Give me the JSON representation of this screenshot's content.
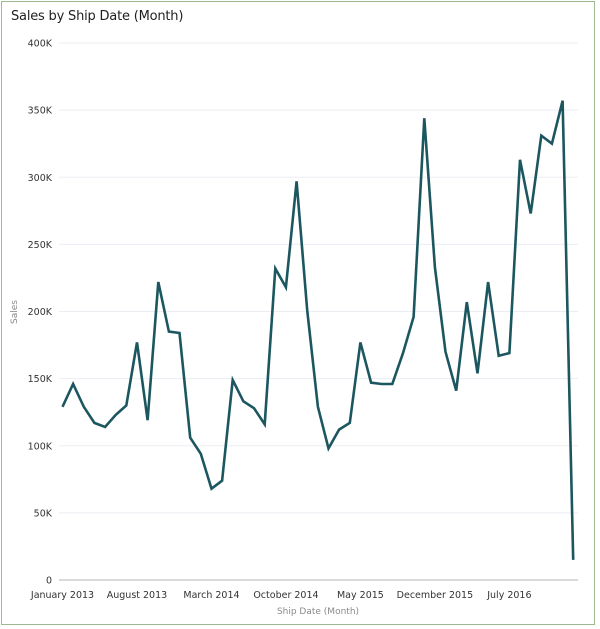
{
  "chart_data": {
    "type": "line",
    "title": "Sales by Ship Date (Month)",
    "xlabel": "Ship Date (Month)",
    "ylabel": "Sales",
    "ylim": [
      0,
      400000
    ],
    "grid": true,
    "line_color": "#1c5760",
    "yticks": [
      {
        "value": 0,
        "label": "0"
      },
      {
        "value": 50000,
        "label": "50K"
      },
      {
        "value": 100000,
        "label": "100K"
      },
      {
        "value": 150000,
        "label": "150K"
      },
      {
        "value": 200000,
        "label": "200K"
      },
      {
        "value": 250000,
        "label": "250K"
      },
      {
        "value": 300000,
        "label": "300K"
      },
      {
        "value": 350000,
        "label": "350K"
      },
      {
        "value": 400000,
        "label": "400K"
      }
    ],
    "xticks": [
      {
        "index": 0,
        "label": "January 2013"
      },
      {
        "index": 7,
        "label": "August 2013"
      },
      {
        "index": 14,
        "label": "March 2014"
      },
      {
        "index": 21,
        "label": "October 2014"
      },
      {
        "index": 28,
        "label": "May 2015"
      },
      {
        "index": 35,
        "label": "December 2015"
      },
      {
        "index": 42,
        "label": "July 2016"
      }
    ],
    "x": [
      "2013-01",
      "2013-02",
      "2013-03",
      "2013-04",
      "2013-05",
      "2013-06",
      "2013-07",
      "2013-08",
      "2013-09",
      "2013-10",
      "2013-11",
      "2013-12",
      "2014-01",
      "2014-02",
      "2014-03",
      "2014-04",
      "2014-05",
      "2014-06",
      "2014-07",
      "2014-08",
      "2014-09",
      "2014-10",
      "2014-11",
      "2014-12",
      "2015-01",
      "2015-02",
      "2015-03",
      "2015-04",
      "2015-05",
      "2015-06",
      "2015-07",
      "2015-08",
      "2015-09",
      "2015-10",
      "2015-11",
      "2015-12",
      "2016-01",
      "2016-02",
      "2016-03",
      "2016-04",
      "2016-05",
      "2016-06",
      "2016-07",
      "2016-08",
      "2016-09",
      "2016-10",
      "2016-11",
      "2016-12",
      "2017-01"
    ],
    "series": [
      {
        "name": "Sales",
        "values": [
          129000,
          146000,
          129000,
          117000,
          114000,
          123000,
          130000,
          177000,
          119000,
          222000,
          185000,
          184000,
          106000,
          94000,
          68000,
          74000,
          149000,
          133000,
          128000,
          116000,
          232000,
          218000,
          297000,
          201000,
          129000,
          98000,
          112000,
          117000,
          177000,
          147000,
          146000,
          146000,
          169000,
          196000,
          344000,
          233000,
          170000,
          141000,
          207000,
          154000,
          222000,
          167000,
          169000,
          313000,
          273000,
          331000,
          325000,
          357000,
          15000
        ]
      }
    ]
  }
}
